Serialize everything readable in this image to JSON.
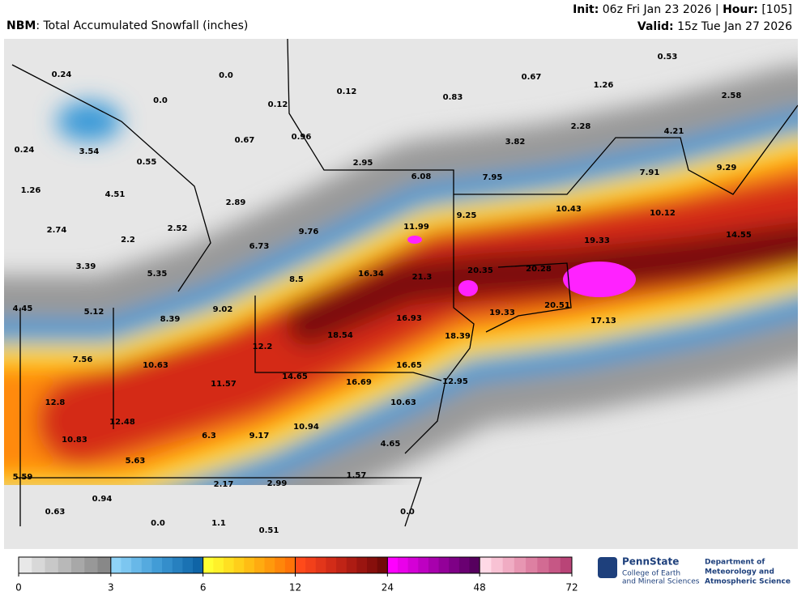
{
  "header": {
    "product": "NBM",
    "title": ": Total Accumulated Snowfall (inches)",
    "init_label": "Init:",
    "init_text": " 06z Fri Jan 23 2026 | ",
    "hour_label": "Hour:",
    "hour_text": " [105]",
    "valid_label": "Valid:",
    "valid_text": " 15z Tue Jan 27 2026"
  },
  "map": {
    "labels": [
      "0.24",
      "0.0",
      "0.0",
      "0.12",
      "0.12",
      "0.83",
      "0.67",
      "0.53",
      "1.26",
      "2.58",
      "0.24",
      "3.54",
      "0.55",
      "0.67",
      "0.96",
      "2.95",
      "3.82",
      "2.28",
      "4.21",
      "6.08",
      "7.95",
      "7.91",
      "9.29",
      "1.26",
      "4.51",
      "2.89",
      "11.99",
      "9.25",
      "10.43",
      "10.12",
      "2.74",
      "2.52",
      "2.2",
      "9.76",
      "6.73",
      "14.55",
      "19.33",
      "16.34",
      "21.3",
      "20.35",
      "20.28",
      "3.39",
      "5.35",
      "8.5",
      "4.45",
      "5.12",
      "9.02",
      "8.39",
      "19.33",
      "20.51",
      "17.13",
      "16.93",
      "18.54",
      "18.39",
      "12.2",
      "7.56",
      "10.63",
      "16.65",
      "14.65",
      "16.69",
      "12.95",
      "11.57",
      "12.8",
      "10.63",
      "12.48",
      "10.94",
      "10.83",
      "6.3",
      "9.17",
      "4.65",
      "5.63",
      "1.57",
      "5.59",
      "2.17",
      "2.99",
      "0.94",
      "0.63",
      "0.0",
      "0.0",
      "1.1",
      "0.51"
    ]
  },
  "colorbar": {
    "ticks": [
      0,
      3,
      6,
      12,
      24,
      48,
      72
    ],
    "colors": [
      [
        "#e8e8e8",
        "#d8d8d8",
        "#c8c8c8",
        "#b8b8b8",
        "#a8a8a8",
        "#989898",
        "#888888"
      ],
      [
        "#8fd3f7",
        "#7cc6f0",
        "#68b8e8",
        "#55aadf",
        "#429cd6",
        "#348ecb",
        "#2780bf",
        "#1a72b3",
        "#0f64a6"
      ],
      [
        "#ffff33",
        "#fff12a",
        "#ffe021",
        "#ffcf1a",
        "#ffbd14",
        "#ffab10",
        "#ff990c",
        "#ff860a",
        "#ff7308"
      ],
      [
        "#ff4a1a",
        "#f2401a",
        "#e2361a",
        "#d22c18",
        "#c02416",
        "#ad1c13",
        "#9a1510",
        "#870f0c",
        "#720a08"
      ],
      [
        "#ff00ff",
        "#ea00ea",
        "#d400d6",
        "#be00c2",
        "#a800ad",
        "#930099",
        "#7e0086",
        "#6a0072",
        "#56005e"
      ],
      [
        "#ffd9e6",
        "#f8c2d4",
        "#f0acc3",
        "#e796b2",
        "#dd80a2",
        "#d26b93",
        "#c65785",
        "#b94477"
      ]
    ]
  },
  "branding": {
    "uni": "PennState",
    "college1": "College of Earth",
    "college2": "and Mineral Sciences",
    "dept1": "Department of",
    "dept2": "Meteorology and",
    "dept3": "Atmospheric Science"
  }
}
